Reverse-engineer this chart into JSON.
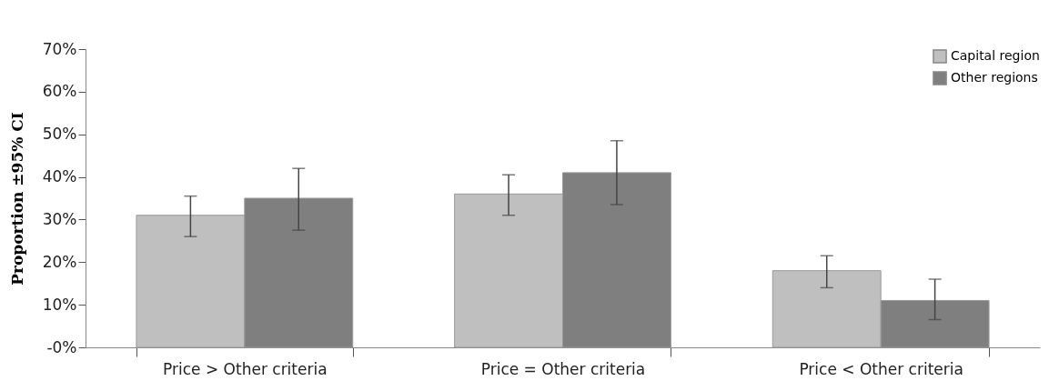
{
  "chart_data": {
    "type": "bar",
    "ylabel": "Proportion ±95% CI",
    "categories": [
      "Price > Other criteria",
      "Price = Other criteria",
      "Price < Other criteria"
    ],
    "series": [
      {
        "name": "Capital region",
        "color": "#bfbfbf",
        "values": [
          31,
          36,
          18
        ],
        "errors": [
          [
            26,
            35.5
          ],
          [
            31,
            40.5
          ],
          [
            14,
            21.5
          ]
        ]
      },
      {
        "name": "Other regions",
        "color": "#7f7f7f",
        "values": [
          35,
          41,
          11
        ],
        "errors": [
          [
            27.5,
            42
          ],
          [
            33.5,
            48.5
          ],
          [
            6.5,
            16
          ]
        ]
      }
    ],
    "ylim": [
      0,
      70
    ],
    "yticks": [
      {
        "value": 0,
        "label": "-0%"
      },
      {
        "value": 10,
        "label": "10%"
      },
      {
        "value": 20,
        "label": "20%"
      },
      {
        "value": 30,
        "label": "30%"
      },
      {
        "value": 40,
        "label": "40%"
      },
      {
        "value": 50,
        "label": "50%"
      },
      {
        "value": 60,
        "label": "60%"
      },
      {
        "value": 70,
        "label": "70%"
      }
    ],
    "grid": false,
    "legend": "top right"
  }
}
